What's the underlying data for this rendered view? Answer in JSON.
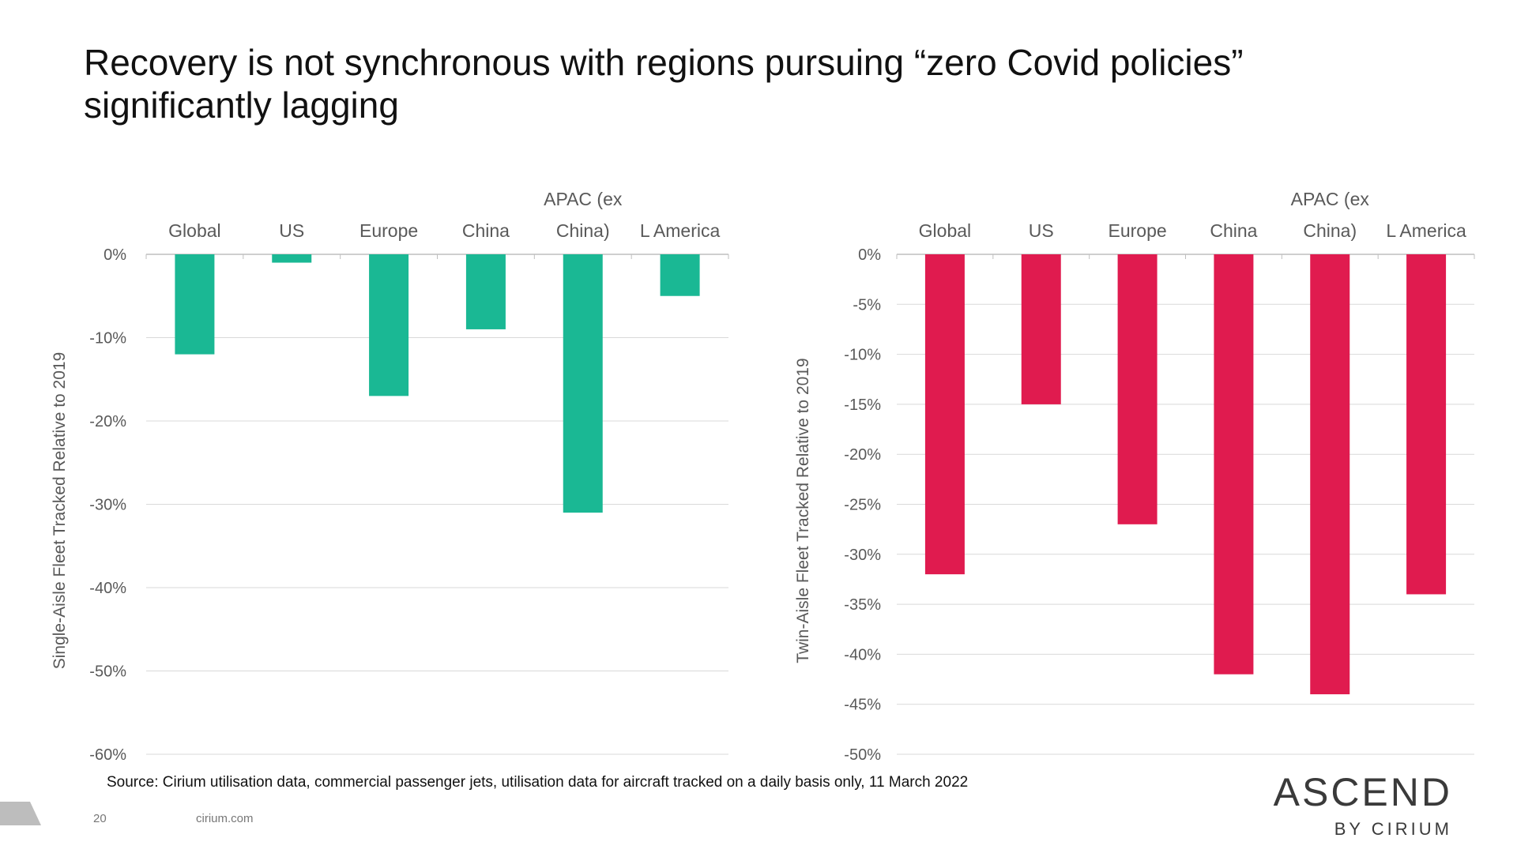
{
  "title": "Recovery is not synchronous with regions pursuing “zero Covid policies” significantly lagging",
  "chart_data": [
    {
      "type": "bar",
      "categories": [
        "Global",
        "US",
        "Europe",
        "China",
        "APAC (ex China)",
        "L America"
      ],
      "category_lines": [
        [
          "Global"
        ],
        [
          "US"
        ],
        [
          "Europe"
        ],
        [
          "China"
        ],
        [
          "APAC (ex",
          "China)"
        ],
        [
          "L America"
        ]
      ],
      "values": [
        -12,
        -1,
        -17,
        -9,
        -31,
        -5
      ],
      "ylabel": "Single-Aisle Fleet Tracked Relative to 2019",
      "ylim": [
        -60,
        0
      ],
      "yticks": [
        0,
        -10,
        -20,
        -30,
        -40,
        -50,
        -60
      ],
      "ytick_labels": [
        "0%",
        "-10%",
        "-20%",
        "-30%",
        "-40%",
        "-50%",
        "-60%"
      ],
      "category_axis_position": "top",
      "grid": true,
      "color": "#1ab894"
    },
    {
      "type": "bar",
      "categories": [
        "Global",
        "US",
        "Europe",
        "China",
        "APAC (ex China)",
        "L America"
      ],
      "category_lines": [
        [
          "Global"
        ],
        [
          "US"
        ],
        [
          "Europe"
        ],
        [
          "China"
        ],
        [
          "APAC (ex",
          "China)"
        ],
        [
          "L America"
        ]
      ],
      "values": [
        -32,
        -15,
        -27,
        -42,
        -44,
        -34
      ],
      "ylabel": "Twin-Aisle Fleet Tracked Relative to 2019",
      "ylim": [
        -50,
        0
      ],
      "yticks": [
        0,
        -5,
        -10,
        -15,
        -20,
        -25,
        -30,
        -35,
        -40,
        -45,
        -50
      ],
      "ytick_labels": [
        "0%",
        "-5%",
        "-10%",
        "-15%",
        "-20%",
        "-25%",
        "-30%",
        "-35%",
        "-40%",
        "-45%",
        "-50%"
      ],
      "category_axis_position": "top",
      "grid": true,
      "color": "#e01b4f"
    }
  ],
  "footer": {
    "source": "Source: Cirium utilisation data, commercial passenger jets, utilisation data for aircraft tracked on a daily basis only, 11 March 2022",
    "page_number": "20",
    "site": "cirium.com"
  },
  "brand": {
    "name": "ASCEND",
    "tagline": "BY CIRIUM"
  }
}
